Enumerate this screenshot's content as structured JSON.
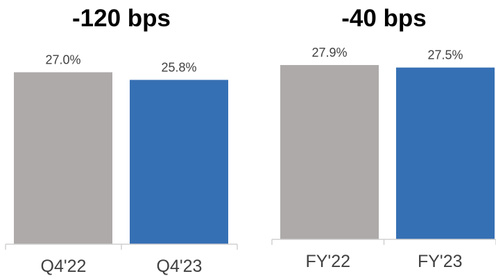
{
  "colors": {
    "prior": "#aeaaaa",
    "current": "#3670b4",
    "axis": "#d0d0d0"
  },
  "chart_data": [
    {
      "type": "bar",
      "title": "-120 bps",
      "categories": [
        "Q4'22",
        "Q4'23"
      ],
      "values": [
        27.0,
        25.8
      ],
      "data_labels": [
        "27.0%",
        "25.8%"
      ],
      "ylim": [
        0,
        27.7
      ],
      "grid": false,
      "legend": "none"
    },
    {
      "type": "bar",
      "title": "-40 bps",
      "categories": [
        "FY'22",
        "FY'23"
      ],
      "values": [
        27.9,
        27.5
      ],
      "data_labels": [
        "27.9%",
        "27.5%"
      ],
      "ylim": [
        0,
        28.9
      ],
      "grid": false,
      "legend": "none"
    }
  ]
}
